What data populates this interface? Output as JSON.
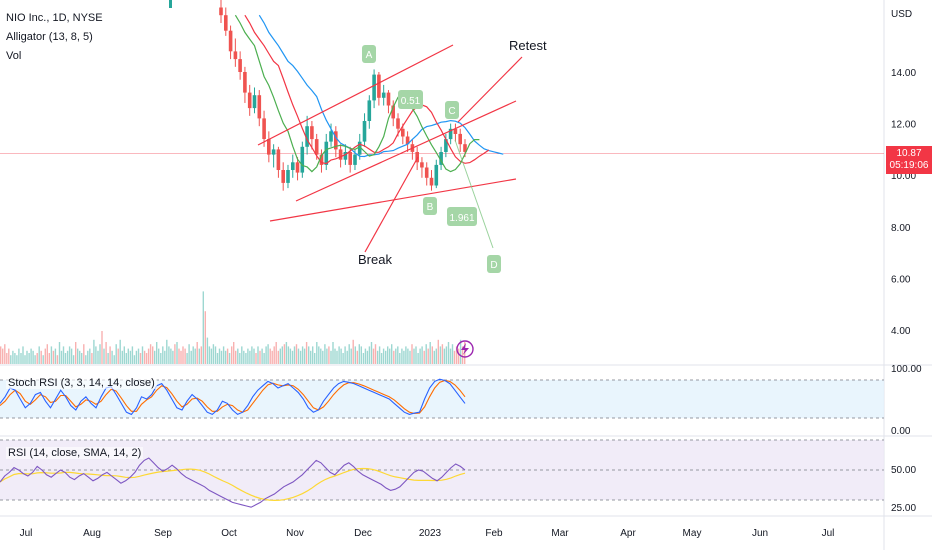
{
  "legend": {
    "symbol": "NIO Inc., 1D, NYSE",
    "alligator": "Alligator (13, 8, 5)",
    "volume": "Vol"
  },
  "price_axis": {
    "currency": "USD",
    "last_price": "10.87",
    "countdown": "05:19:06"
  },
  "panes": {
    "stoch_label": "Stoch RSI (3, 3, 14, 14, close)",
    "rsi_label": "RSI (14, close, SMA, 14, 2)"
  },
  "annotations": {
    "retest": "Retest",
    "break": "Break",
    "points": [
      "A",
      "B",
      "C",
      "D"
    ],
    "fib_1": "0.51",
    "fib_2": "1.961"
  },
  "colors": {
    "up": "#26a69a",
    "down": "#ef5350",
    "trendline": "#f23645",
    "pattern_label_bg": "#a5d6a7",
    "alligator_jaw": "#2196f3",
    "alligator_teeth": "#f23645",
    "alligator_lips": "#4caf50",
    "stoch_k": "#2962ff",
    "stoch_d": "#ff6d00",
    "rsi_line": "#7e57c2",
    "rsi_ma": "#fdd835"
  },
  "chart_data": {
    "type": "candlestick",
    "title": "NIO Inc., 1D, NYSE",
    "price_range": [
      2.6,
      16.6
    ],
    "price_ticks": [
      "14.00",
      "12.00",
      "10.00",
      "8.00",
      "6.00",
      "4.00"
    ],
    "time_ticks": [
      "Jul",
      "Aug",
      "Sep",
      "Oct",
      "Nov",
      "Dec",
      "2023",
      "Feb",
      "Mar",
      "Apr",
      "May",
      "Jun",
      "Jul"
    ],
    "candles": [
      [
        16.5,
        16.2,
        16.8,
        15.9
      ],
      [
        16.2,
        15.6,
        16.5,
        15.4
      ],
      [
        15.6,
        14.8,
        15.8,
        14.5
      ],
      [
        14.8,
        14.5,
        15.3,
        14.2
      ],
      [
        14.5,
        14.0,
        14.8,
        13.7
      ],
      [
        14.0,
        13.2,
        14.2,
        12.8
      ],
      [
        13.2,
        12.6,
        13.5,
        12.3
      ],
      [
        12.6,
        13.1,
        13.4,
        12.4
      ],
      [
        13.1,
        12.2,
        13.3,
        11.9
      ],
      [
        12.2,
        11.4,
        12.5,
        11.1
      ],
      [
        11.4,
        10.8,
        11.7,
        10.5
      ],
      [
        10.8,
        11.0,
        11.2,
        10.3
      ],
      [
        11.0,
        10.2,
        11.1,
        9.9
      ],
      [
        10.2,
        9.7,
        10.5,
        9.4
      ],
      [
        9.7,
        10.2,
        10.4,
        9.5
      ],
      [
        10.2,
        10.5,
        10.8,
        9.9
      ],
      [
        10.5,
        10.1,
        10.7,
        9.8
      ],
      [
        10.1,
        11.1,
        11.3,
        9.9
      ],
      [
        11.1,
        11.9,
        12.3,
        10.8
      ],
      [
        11.9,
        11.4,
        12.1,
        11.0
      ],
      [
        11.4,
        10.8,
        11.6,
        10.6
      ],
      [
        10.8,
        10.4,
        11.0,
        10.1
      ],
      [
        10.4,
        11.3,
        11.6,
        10.2
      ],
      [
        11.3,
        11.7,
        12.0,
        11.1
      ],
      [
        11.7,
        11.0,
        11.9,
        10.7
      ],
      [
        11.0,
        10.6,
        11.2,
        10.3
      ],
      [
        10.6,
        10.9,
        11.2,
        10.4
      ],
      [
        10.9,
        10.4,
        11.1,
        10.1
      ],
      [
        10.4,
        10.8,
        11.0,
        10.2
      ],
      [
        10.8,
        11.3,
        11.6,
        10.6
      ],
      [
        11.3,
        12.1,
        12.4,
        11.1
      ],
      [
        12.1,
        12.9,
        13.1,
        11.8
      ],
      [
        12.9,
        13.9,
        14.1,
        12.6
      ],
      [
        13.9,
        13.0,
        14.0,
        12.7
      ],
      [
        13.0,
        13.2,
        13.5,
        12.7
      ],
      [
        13.2,
        12.7,
        13.3,
        12.4
      ],
      [
        12.7,
        12.2,
        12.9,
        11.9
      ],
      [
        12.2,
        11.8,
        12.4,
        11.5
      ],
      [
        11.8,
        11.5,
        12.0,
        11.2
      ],
      [
        11.5,
        11.2,
        11.7,
        10.9
      ],
      [
        11.2,
        10.9,
        11.4,
        10.6
      ],
      [
        10.9,
        10.5,
        11.1,
        10.2
      ],
      [
        10.5,
        10.3,
        10.7,
        9.9
      ],
      [
        10.3,
        9.9,
        10.5,
        9.6
      ],
      [
        9.9,
        9.6,
        10.2,
        9.4
      ],
      [
        9.6,
        10.4,
        10.6,
        9.5
      ],
      [
        10.4,
        10.9,
        11.1,
        10.2
      ],
      [
        10.9,
        11.4,
        11.6,
        10.7
      ],
      [
        11.4,
        11.8,
        12.0,
        11.2
      ],
      [
        11.8,
        11.6,
        12.0,
        11.3
      ],
      [
        11.6,
        11.2,
        11.8,
        10.9
      ],
      [
        11.2,
        10.9,
        11.4,
        10.7
      ]
    ],
    "volume": [
      3.6,
      3.5,
      3.7,
      3.3,
      3.5,
      3.2,
      3.4,
      3.3,
      3.2,
      3.5,
      3.3,
      3.6,
      3.2,
      3.4,
      3.3,
      3.5,
      3.4,
      3.2,
      3.3,
      3.6,
      3.4,
      3.2,
      3.5,
      3.7,
      3.3,
      3.6,
      3.4,
      3.5,
      3.2,
      3.8,
      3.4,
      3.6,
      3.3,
      3.4,
      3.6,
      3.5,
      3.2,
      3.8,
      3.5,
      3.4,
      3.3,
      3.7,
      3.2,
      3.4,
      3.5,
      3.3,
      3.9,
      3.6,
      3.4,
      3.7,
      4.3,
      3.5,
      3.8,
      3.3,
      3.6,
      3.4,
      3.2,
      3.7,
      3.5,
      3.9,
      3.4,
      3.6,
      3.3,
      3.5,
      3.4,
      3.6,
      3.2,
      3.4,
      3.5,
      3.3,
      3.6,
      3.4,
      3.3,
      3.5,
      3.7,
      3.6,
      3.4,
      3.8,
      3.5,
      3.3,
      3.6,
      3.4,
      3.9,
      3.6,
      3.5,
      3.4,
      3.7,
      3.8,
      3.5,
      3.4,
      3.6,
      3.5,
      3.3,
      3.7,
      3.4,
      3.6,
      3.5,
      3.8,
      3.5,
      3.6,
      6.1,
      5.2,
      4.0,
      3.6,
      3.5,
      3.7,
      3.6,
      3.3,
      3.5,
      3.4,
      3.6,
      3.4,
      3.5,
      3.3,
      3.6,
      3.8,
      3.4,
      3.5,
      3.3,
      3.6,
      3.4,
      3.3,
      3.5,
      3.4,
      3.6,
      3.5,
      3.3,
      3.6,
      3.4,
      3.5,
      3.3,
      3.6,
      3.7,
      3.5,
      3.4,
      3.6,
      3.8,
      3.4,
      3.5,
      3.6,
      3.7,
      3.8,
      3.6,
      3.5,
      3.4,
      3.6,
      3.7,
      3.5,
      3.4,
      3.6,
      3.5,
      3.8,
      3.6,
      3.4,
      3.6,
      3.3,
      3.8,
      3.6,
      3.5,
      3.4,
      3.7,
      3.5,
      3.6,
      3.4,
      3.8,
      3.5,
      3.4,
      3.6,
      3.5,
      3.3,
      3.6,
      3.4,
      3.7,
      3.5,
      3.9,
      3.6,
      3.4,
      3.7,
      3.6,
      3.3,
      3.5,
      3.4,
      3.6,
      3.8,
      3.5,
      3.7,
      3.4,
      3.6,
      3.3,
      3.5,
      3.4,
      3.6,
      3.5,
      3.7,
      3.4,
      3.5,
      3.6,
      3.3,
      3.5,
      3.4,
      3.6,
      3.5,
      3.4,
      3.7,
      3.5,
      3.6,
      3.3,
      3.5,
      3.6,
      3.4,
      3.7,
      3.5,
      3.8,
      3.6,
      3.4,
      3.5,
      3.9,
      3.6,
      3.7,
      3.5,
      3.6,
      3.8,
      3.5,
      3.7,
      3.4,
      3.6,
      3.5,
      3.9,
      3.6,
      3.8
    ],
    "stoch_rsi": {
      "ticks": [
        "100.00",
        "0.00"
      ],
      "k": [
        40,
        55,
        75,
        70,
        50,
        30,
        40,
        60,
        65,
        45,
        30,
        50,
        70,
        55,
        35,
        25,
        45,
        55,
        40,
        30,
        55,
        75,
        78,
        60,
        40,
        20,
        15,
        30,
        55,
        50,
        60,
        80,
        85,
        70,
        50,
        30,
        25,
        45,
        60,
        50,
        35,
        20,
        15,
        25,
        45,
        40,
        25,
        15,
        20,
        35,
        55,
        70,
        80,
        90,
        85,
        75,
        80,
        85,
        75,
        65,
        50,
        30,
        20,
        25,
        45,
        60,
        75,
        85,
        90,
        88,
        85,
        80,
        75,
        70,
        65,
        60,
        55,
        50,
        40,
        30,
        20,
        15,
        18,
        20,
        50,
        75,
        90,
        95,
        92,
        85,
        70,
        55,
        40
      ],
      "d": [
        35,
        45,
        60,
        70,
        62,
        45,
        38,
        48,
        60,
        55,
        42,
        45,
        58,
        58,
        45,
        32,
        38,
        48,
        45,
        38,
        45,
        60,
        72,
        68,
        52,
        35,
        22,
        22,
        38,
        48,
        55,
        70,
        80,
        76,
        62,
        45,
        32,
        38,
        50,
        52,
        45,
        32,
        22,
        22,
        32,
        38,
        35,
        25,
        20,
        25,
        40,
        55,
        70,
        82,
        86,
        82,
        80,
        82,
        80,
        72,
        60,
        45,
        30,
        25,
        32,
        45,
        60,
        72,
        82,
        87,
        87,
        84,
        80,
        75,
        70,
        65,
        60,
        55,
        48,
        38,
        28,
        20,
        17,
        18,
        32,
        55,
        75,
        88,
        92,
        90,
        82,
        70,
        55
      ]
    },
    "rsi": {
      "ticks": [
        "50.00",
        "25.00"
      ],
      "line": [
        40,
        45,
        48,
        52,
        50,
        47,
        45,
        48,
        53,
        50,
        46,
        44,
        47,
        50,
        48,
        44,
        42,
        45,
        47,
        44,
        41,
        43,
        46,
        48,
        45,
        42,
        39,
        41,
        44,
        48,
        54,
        58,
        60,
        56,
        52,
        49,
        51,
        54,
        51,
        47,
        44,
        42,
        40,
        38,
        36,
        33,
        31,
        29,
        27,
        25,
        23,
        22,
        21,
        20,
        19,
        21,
        23,
        26,
        28,
        30,
        33,
        36,
        38,
        40,
        43,
        46,
        50,
        54,
        58,
        56,
        52,
        48,
        46,
        50,
        54,
        56,
        53,
        49,
        46,
        44,
        42,
        40,
        38,
        35,
        33,
        34,
        36,
        40,
        44,
        48,
        50,
        49,
        46,
        43,
        41,
        44,
        48,
        52,
        55,
        53,
        50
      ]
    }
  }
}
